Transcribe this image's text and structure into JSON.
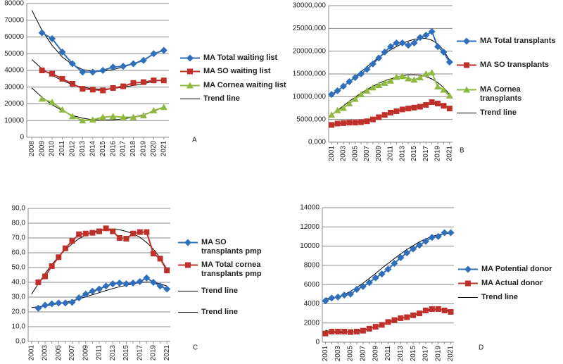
{
  "chart_data": [
    {
      "type": "line",
      "label": "A",
      "categories": [
        "2008",
        "2009",
        "2010",
        "2011",
        "2012",
        "2013",
        "2014",
        "2015",
        "2016",
        "2017",
        "2018",
        "2019",
        "2020",
        "2021"
      ],
      "series": [
        {
          "name": "MA Total waiting list",
          "color": "#2f6eba",
          "marker": "diamond",
          "values": [
            null,
            62500,
            59000,
            51000,
            44000,
            39000,
            39000,
            40000,
            42000,
            42500,
            44000,
            46000,
            50000,
            52000
          ]
        },
        {
          "name": "MA SO waiting list",
          "color": "#c0302b",
          "marker": "square",
          "values": [
            null,
            40000,
            38000,
            35000,
            32000,
            29000,
            28500,
            28000,
            29500,
            30500,
            32500,
            33000,
            34000,
            34000
          ]
        },
        {
          "name": "MA Cornea waiting list",
          "color": "#8fb840",
          "marker": "triangle",
          "values": [
            null,
            23000,
            21000,
            16500,
            12500,
            10000,
            10500,
            12000,
            12500,
            12000,
            12000,
            13000,
            16000,
            18000
          ]
        }
      ],
      "trend_lines": [
        {
          "name": "Trend line",
          "color": "#000000",
          "lines": [
            [
              76000,
              64000,
              55000,
              48000,
              43500,
              40500,
              39500,
              39500,
              40500,
              42000,
              44000,
              46500,
              49500,
              52500
            ],
            [
              46500,
              41000,
              37000,
              34000,
              31500,
              30000,
              29000,
              28800,
              29200,
              30000,
              31000,
              32000,
              33500,
              34500
            ],
            [
              29500,
              24000,
              19500,
              16000,
              13000,
              11500,
              10500,
              10300,
              10500,
              11000,
              12000,
              13500,
              15500,
              18000
            ]
          ]
        }
      ],
      "ylim": [
        0,
        80000
      ],
      "yticks": [
        0,
        10000,
        20000,
        30000,
        40000,
        50000,
        60000,
        70000,
        80000
      ],
      "grid": true
    },
    {
      "type": "line",
      "label": "B",
      "categories": [
        "2001",
        null,
        "2003",
        null,
        "2005",
        null,
        "2007",
        null,
        "2009",
        null,
        "2011",
        null,
        "2013",
        null,
        "2015",
        null,
        "2017",
        null,
        "2019",
        null,
        "2021"
      ],
      "series": [
        {
          "name": "MA Total transplants",
          "color": "#2f6eba",
          "marker": "diamond",
          "values": [
            10500000,
            11300000,
            12300000,
            13300000,
            14200000,
            15000000,
            16000000,
            17200000,
            18500000,
            19800000,
            21000000,
            21800000,
            21800000,
            21300000,
            21800000,
            23000000,
            23500000,
            24300000,
            21000000,
            19800000,
            17600000
          ]
        },
        {
          "name": "MA SO transplants",
          "color": "#c0302b",
          "marker": "square",
          "values": [
            3800000,
            4100000,
            4200000,
            4300000,
            4300000,
            4400000,
            4600000,
            5000000,
            5500000,
            6000000,
            6500000,
            6800000,
            7200000,
            7400000,
            7600000,
            7800000,
            8200000,
            8800000,
            8500000,
            8000000,
            7400000
          ]
        },
        {
          "name": "MA Cornea transplants",
          "color": "#8fb840",
          "marker": "triangle",
          "values": [
            6000000,
            7000000,
            7500000,
            8500000,
            9500000,
            10500000,
            11300000,
            12000000,
            12500000,
            13000000,
            13500000,
            14300000,
            14500000,
            14000000,
            13700000,
            14200000,
            15000000,
            15300000,
            12200000,
            11500000,
            10200000
          ]
        }
      ],
      "trend_lines": [
        {
          "name": "Trend line",
          "color": "#000000",
          "lines": [
            [
              10300000,
              11200000,
              12200000,
              13300000,
              14400000,
              15500000,
              16600000,
              17600000,
              18600000,
              19500000,
              20300000,
              21000000,
              21700000,
              22200000,
              22600000,
              22800000,
              22800000,
              22400000,
              21600000,
              20200000,
              18000000
            ],
            [
              4000000,
              4000000,
              4100000,
              4200000,
              4400000,
              4600000,
              4900000,
              5200000,
              5600000,
              6000000,
              6400000,
              6800000,
              7200000,
              7600000,
              7900000,
              8200000,
              8400000,
              8500000,
              8400000,
              8100000,
              7600000
            ],
            [
              6000000,
              7000000,
              8000000,
              9000000,
              9900000,
              10800000,
              11600000,
              12300000,
              12900000,
              13500000,
              13900000,
              14300000,
              14600000,
              14800000,
              14800000,
              14700000,
              14400000,
              13900000,
              13100000,
              12000000,
              10500000
            ]
          ]
        }
      ],
      "ylim": [
        0,
        30000000
      ],
      "yticks": [
        {
          "value": 0,
          "label": "0,000"
        },
        {
          "value": 5000000,
          "label": "5000,000"
        },
        {
          "value": 10000000,
          "label": "10000,000"
        },
        {
          "value": 15000000,
          "label": "15000,000"
        },
        {
          "value": 20000000,
          "label": "20000,000"
        },
        {
          "value": 25000000,
          "label": "25000,000"
        },
        {
          "value": 30000000,
          "label": "30000,000"
        }
      ],
      "grid": true
    },
    {
      "type": "line",
      "label": "C",
      "categories": [
        "2001",
        null,
        "2003",
        null,
        "2005",
        null,
        "2007",
        null,
        "2009",
        null,
        "2011",
        null,
        "2013",
        null,
        "2015",
        null,
        "2017",
        null,
        "2019",
        null,
        "2021"
      ],
      "series": [
        {
          "name": "MA SO transplants pmp",
          "color": "#2f6eba",
          "marker": "diamond",
          "values": [
            null,
            22.5,
            24.5,
            25.5,
            26,
            26,
            26.5,
            29.5,
            32,
            34,
            35.5,
            37.5,
            39,
            39.5,
            39,
            39.5,
            40.5,
            43,
            40,
            37.5,
            35.5
          ]
        },
        {
          "name": "MA Total cornea transplants pmp",
          "color": "#c0302b",
          "marker": "square",
          "values": [
            null,
            40,
            44,
            51,
            57,
            63,
            68,
            72.5,
            73,
            73.5,
            74.5,
            76.5,
            74.5,
            70,
            69.5,
            73,
            74,
            74,
            59.5,
            56,
            48
          ]
        }
      ],
      "trend_lines": [
        {
          "name": "Trend line",
          "color": "#000000",
          "lines": [
            [
              23,
              23.5,
              24,
              24.8,
              25.6,
              26.5,
              27.6,
              28.8,
              30.2,
              31.6,
              33,
              34.5,
              35.8,
              37,
              38,
              39,
              39.8,
              40.2,
              40,
              39,
              37.5
            ]
          ]
        },
        {
          "name": "Trend line",
          "color": "#000000",
          "lines": [
            [
              32,
              39,
              46,
              52,
              57.5,
              62,
              66,
              69.5,
              72,
              74,
              75.3,
              76,
              76,
              75.5,
              74.5,
              72.8,
              70.5,
              67,
              62.5,
              56.5,
              49
            ]
          ]
        }
      ],
      "ylim": [
        0,
        90
      ],
      "yticks": [
        {
          "value": 0,
          "label": "0,0"
        },
        {
          "value": 10,
          "label": "10,0"
        },
        {
          "value": 20,
          "label": "20,0"
        },
        {
          "value": 30,
          "label": "30,0"
        },
        {
          "value": 40,
          "label": "40,0"
        },
        {
          "value": 50,
          "label": "50,0"
        },
        {
          "value": 60,
          "label": "60,0"
        },
        {
          "value": 70,
          "label": "70,0"
        },
        {
          "value": 80,
          "label": "80,0"
        },
        {
          "value": 90,
          "label": "90,0"
        }
      ],
      "grid": true
    },
    {
      "type": "line",
      "label": "D",
      "categories": [
        "2001",
        null,
        "2003",
        null,
        "2005",
        null,
        "2007",
        null,
        "2009",
        null,
        "2011",
        null,
        "2013",
        null,
        "2015",
        null,
        "2017",
        null,
        "2019",
        null,
        "2021"
      ],
      "series": [
        {
          "name": "MA Potential donor",
          "color": "#2f6eba",
          "marker": "diamond",
          "values": [
            4300,
            4600,
            4700,
            4900,
            5000,
            5500,
            5800,
            6200,
            6700,
            7100,
            7600,
            8200,
            8800,
            9300,
            9700,
            10100,
            10500,
            10900,
            11000,
            11400,
            11400
          ]
        },
        {
          "name": "MA Actual donor",
          "color": "#c0302b",
          "marker": "square",
          "values": [
            900,
            1100,
            1100,
            1100,
            1050,
            1100,
            1200,
            1400,
            1600,
            1800,
            2100,
            2300,
            2500,
            2600,
            2800,
            3000,
            3300,
            3450,
            3450,
            3300,
            3150
          ]
        }
      ],
      "trend_lines": [
        {
          "name": "Trend line",
          "color": "#000000",
          "lines": [
            [
              4600,
              4550,
              4700,
              4950,
              5300,
              5700,
              6150,
              6650,
              7150,
              7700,
              8200,
              8700,
              9200,
              9650,
              10050,
              10450,
              10750,
              11000,
              11200,
              11300,
              11350
            ],
            [
              1250,
              1050,
              1000,
              1000,
              1050,
              1150,
              1300,
              1450,
              1650,
              1850,
              2050,
              2250,
              2450,
              2650,
              2850,
              3050,
              3200,
              3350,
              3400,
              3400,
              3300
            ]
          ]
        }
      ],
      "ylim": [
        0,
        14000
      ],
      "yticks": [
        0,
        2000,
        4000,
        6000,
        8000,
        10000,
        12000,
        14000
      ],
      "grid": true
    }
  ]
}
